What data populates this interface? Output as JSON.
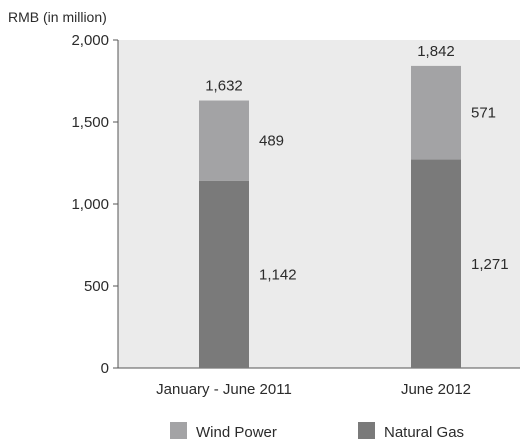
{
  "chart_data": {
    "type": "bar",
    "stacked": true,
    "ylabel": "RMB (in million)",
    "ylim": [
      0,
      2000
    ],
    "yticks": [
      "0",
      "500",
      "1,000",
      "1,500",
      "2,000"
    ],
    "ytick_values": [
      0,
      500,
      1000,
      1500,
      2000
    ],
    "categories": [
      "January - June 2011",
      "June 2012"
    ],
    "series": [
      {
        "name": "Natural Gas",
        "values": [
          1142,
          1271
        ],
        "labels": [
          "1,142",
          "1,271"
        ],
        "color": "#7a7a7a"
      },
      {
        "name": "Wind Power",
        "values": [
          489,
          571
        ],
        "labels": [
          "489",
          "571"
        ],
        "color": "#a3a3a5"
      }
    ],
    "totals": [
      1632,
      1842
    ],
    "total_labels": [
      "1,632",
      "1,842"
    ],
    "legend_order": [
      "Wind Power",
      "Natural Gas"
    ],
    "legend_position": "bottom",
    "plot_background": "#ebebeb"
  }
}
